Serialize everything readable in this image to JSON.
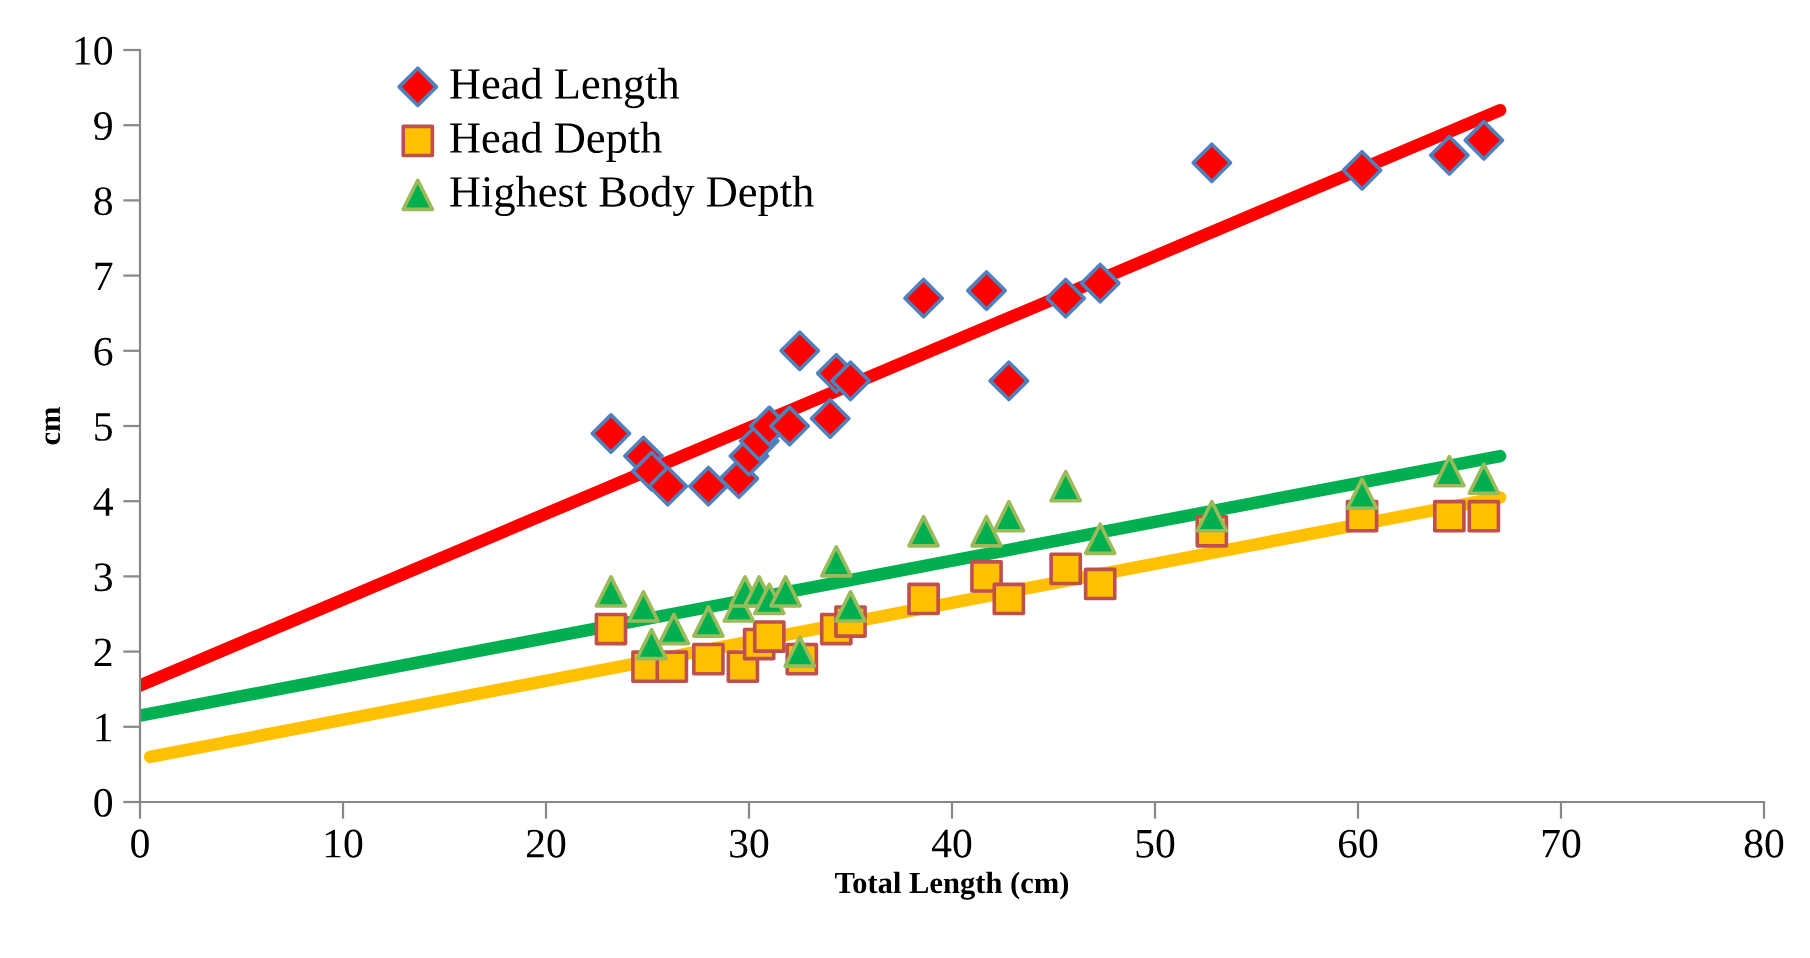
{
  "chart_data": {
    "type": "scatter",
    "xlabel": "Total Length (cm)",
    "ylabel": "cm",
    "xlim": [
      0,
      80
    ],
    "ylim": [
      0,
      10
    ],
    "xticks": [
      0,
      10,
      20,
      30,
      40,
      50,
      60,
      70,
      80
    ],
    "yticks": [
      0,
      1,
      2,
      3,
      4,
      5,
      6,
      7,
      8,
      9,
      10
    ],
    "grid": false,
    "legend": "top left",
    "series": [
      {
        "name": "Head Length",
        "color": "#ff0000",
        "marker": "diamond",
        "x": [
          23.2,
          24.8,
          25.2,
          26,
          28,
          29.5,
          30,
          30.5,
          31,
          32,
          32.5,
          34,
          34.3,
          35,
          38.6,
          41.7,
          42.8,
          45.6,
          47.3,
          52.8,
          60.2,
          64.5,
          66.2
        ],
        "values": [
          4.9,
          4.6,
          4.4,
          4.2,
          4.2,
          4.3,
          4.6,
          4.8,
          5.0,
          5.0,
          6.0,
          5.1,
          5.7,
          5.6,
          6.7,
          6.8,
          5.6,
          6.7,
          6.9,
          8.5,
          8.4,
          8.6,
          8.8
        ]
      },
      {
        "name": "Head Depth",
        "color": "#ffc000",
        "marker": "square",
        "x": [
          23.2,
          25,
          26.2,
          28,
          29.7,
          30.5,
          31,
          32.6,
          34.3,
          35,
          38.6,
          41.7,
          42.8,
          45.6,
          47.3,
          52.8,
          60.2,
          64.5,
          66.2
        ],
        "values": [
          2.3,
          1.8,
          1.8,
          1.9,
          1.8,
          2.1,
          2.2,
          1.9,
          2.3,
          2.4,
          2.7,
          3.0,
          2.7,
          3.1,
          2.9,
          3.6,
          3.8,
          3.8,
          3.8
        ]
      },
      {
        "name": "Highest Body Depth",
        "color": "#00b050",
        "marker": "triangle",
        "x": [
          23.2,
          24.8,
          25.2,
          26.3,
          28,
          29.5,
          29.8,
          30.5,
          31,
          31.8,
          32.5,
          34.3,
          35,
          38.6,
          41.7,
          42.8,
          45.6,
          47.3,
          52.8,
          60.2,
          64.5,
          66.2
        ],
        "values": [
          2.8,
          2.6,
          2.1,
          2.3,
          2.4,
          2.6,
          2.8,
          2.8,
          2.7,
          2.8,
          2.0,
          3.2,
          2.6,
          3.6,
          3.6,
          3.8,
          4.2,
          3.5,
          3.8,
          4.1,
          4.4,
          4.3
        ]
      },
      {
        "type": "line",
        "color": "#ff0000",
        "x": [
          0,
          67
        ],
        "values": [
          1.55,
          9.2
        ]
      },
      {
        "type": "line",
        "color": "#ffc000",
        "x": [
          0.5,
          67
        ],
        "values": [
          0.6,
          4.05
        ]
      },
      {
        "type": "line",
        "color": "#00b050",
        "x": [
          0,
          67
        ],
        "values": [
          1.15,
          4.6
        ]
      }
    ]
  }
}
